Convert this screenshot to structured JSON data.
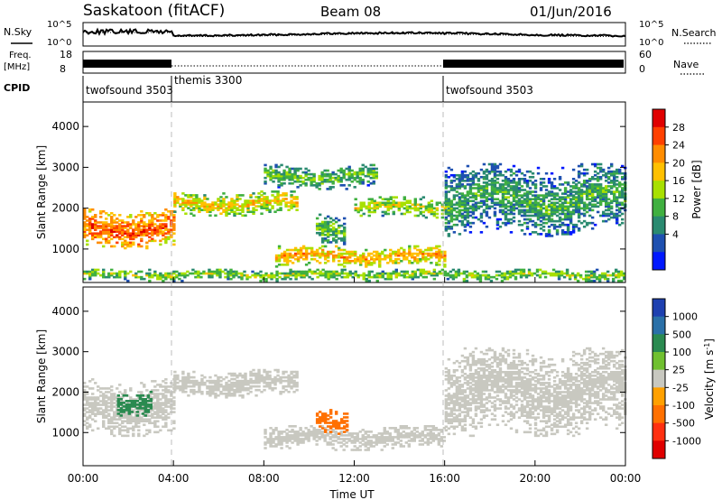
{
  "header": {
    "station": "Saskatoon (fitACF)",
    "beam": "Beam 08",
    "date": "01/Jun/2016"
  },
  "noise_panel": {
    "left_label": "N.Sky",
    "right_label": "N.Search",
    "left_ticks": [
      "10^5",
      "10^0"
    ],
    "right_ticks": [
      "10^5",
      "10^0"
    ]
  },
  "freq_panel": {
    "left_label_line1": "Freq.",
    "left_label_line2": "[MHz]",
    "right_label": "Nave",
    "left_ticks": [
      "18",
      "8"
    ],
    "right_ticks": [
      "60",
      "0"
    ]
  },
  "cpid_panel": {
    "label": "CPID",
    "modes": [
      {
        "name": "twofsound 3503",
        "start_hour": 0,
        "end_hour": 4
      },
      {
        "name": "themis 3300",
        "start_hour": 4,
        "end_hour": 16
      },
      {
        "name": "twofsound 3503",
        "start_hour": 16,
        "end_hour": 24
      }
    ]
  },
  "power_colorbar": {
    "label": "Power [dB]",
    "ticks": [
      "28",
      "24",
      "20",
      "16",
      "12",
      "8",
      "4"
    ],
    "colors": [
      "#e00000",
      "#ff4000",
      "#ff8c00",
      "#ffc000",
      "#a8e000",
      "#40b040",
      "#2a8a70",
      "#1e50b0",
      "#0018ff"
    ]
  },
  "velocity_colorbar": {
    "label": "Velocity [m s",
    "label_sup": "-1",
    "label_end": "]",
    "ticks": [
      "1000",
      "500",
      "100",
      "25",
      "-25",
      "-100",
      "-500",
      "-1000"
    ],
    "colors": [
      "#1e40b0",
      "#2a70a8",
      "#2a8a50",
      "#70c030",
      "#c8c8c0",
      "#ffa000",
      "#ff7000",
      "#ff3010",
      "#e00000"
    ]
  },
  "x_axis": {
    "label": "Time UT",
    "ticks": [
      "00:00",
      "04:00",
      "08:00",
      "12:00",
      "16:00",
      "20:00",
      "00:00"
    ]
  },
  "y_axis": {
    "label": "Slant Range [km]",
    "ticks": [
      "1000",
      "2000",
      "3000",
      "4000"
    ]
  },
  "chart_data": [
    {
      "type": "heatmap",
      "title": "Power",
      "xlabel": "Time UT",
      "ylabel": "Slant Range [km]",
      "xlim": [
        0,
        24
      ],
      "ylim": [
        180,
        4600
      ],
      "colorbar_label": "Power [dB]",
      "colorbar_range": [
        0,
        32
      ],
      "echo_regions": [
        {
          "t0": 0.0,
          "t1": 4.0,
          "r_center": 1500,
          "r_width": 500,
          "value": 22
        },
        {
          "t0": 4.0,
          "t1": 9.5,
          "r_center": 2100,
          "r_width": 300,
          "value": 16
        },
        {
          "t0": 8.0,
          "t1": 13.0,
          "r_center": 2750,
          "r_width": 300,
          "value": 10
        },
        {
          "t0": 8.5,
          "t1": 16.0,
          "r_center": 800,
          "r_width": 250,
          "value": 18
        },
        {
          "t0": 12.0,
          "t1": 16.0,
          "r_center": 2000,
          "r_width": 250,
          "value": 14
        },
        {
          "t0": 16.0,
          "t1": 24.0,
          "r_center": 2200,
          "r_width": 900,
          "value": 8
        },
        {
          "t0": 10.3,
          "t1": 11.5,
          "r_center": 1500,
          "r_width": 400,
          "value": 10
        },
        {
          "t0": 0.0,
          "t1": 24.0,
          "r_center": 350,
          "r_width": 150,
          "value": 12
        }
      ]
    },
    {
      "type": "heatmap",
      "title": "Velocity",
      "xlabel": "Time UT",
      "ylabel": "Slant Range [km]",
      "xlim": [
        0,
        24
      ],
      "ylim": [
        180,
        4600
      ],
      "colorbar_label": "Velocity [m s-1]",
      "colorbar_range": [
        -1000,
        1000
      ],
      "echo_regions": [
        {
          "t0": 0.0,
          "t1": 4.0,
          "r_center": 1600,
          "r_width": 700,
          "value": 0
        },
        {
          "t0": 4.0,
          "t1": 9.5,
          "r_center": 2200,
          "r_width": 350,
          "value": 0
        },
        {
          "t0": 8.0,
          "t1": 16.0,
          "r_center": 850,
          "r_width": 300,
          "value": 0
        },
        {
          "t0": 10.3,
          "t1": 11.7,
          "r_center": 1250,
          "r_width": 300,
          "value": -300
        },
        {
          "t0": 16.0,
          "t1": 24.0,
          "r_center": 2000,
          "r_width": 1100,
          "value": 0
        },
        {
          "t0": 1.5,
          "t1": 3.0,
          "r_center": 1700,
          "r_width": 300,
          "value": 300
        }
      ]
    }
  ]
}
